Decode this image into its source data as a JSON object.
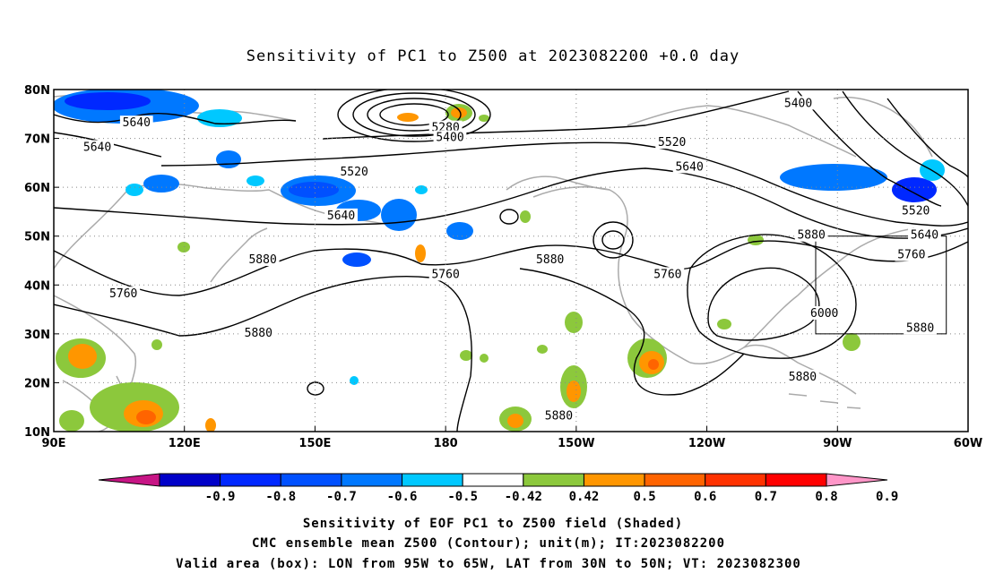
{
  "title": "Sensitivity of PC1 to Z500 at 2023082200 +0.0 day",
  "map": {
    "lon_range": [
      90,
      300
    ],
    "lat_range": [
      10,
      80
    ],
    "x_ticks": [
      {
        "lon": 90,
        "label": "90E"
      },
      {
        "lon": 120,
        "label": "120E"
      },
      {
        "lon": 150,
        "label": "150E"
      },
      {
        "lon": 180,
        "label": "180"
      },
      {
        "lon": 210,
        "label": "150W"
      },
      {
        "lon": 240,
        "label": "120W"
      },
      {
        "lon": 270,
        "label": "90W"
      },
      {
        "lon": 300,
        "label": "60W"
      }
    ],
    "y_ticks": [
      {
        "lat": 10,
        "label": "10N"
      },
      {
        "lat": 20,
        "label": "20N"
      },
      {
        "lat": 30,
        "label": "30N"
      },
      {
        "lat": 40,
        "label": "40N"
      },
      {
        "lat": 50,
        "label": "50N"
      },
      {
        "lat": 60,
        "label": "60N"
      },
      {
        "lat": 70,
        "label": "70N"
      },
      {
        "lat": 80,
        "label": "80N"
      }
    ],
    "grid": "dotted",
    "contour_labels": [
      {
        "text": "5640",
        "lon": 109,
        "lat": 73
      },
      {
        "text": "5640",
        "lon": 100,
        "lat": 68
      },
      {
        "text": "5280",
        "lon": 180,
        "lat": 72
      },
      {
        "text": "5400",
        "lon": 181,
        "lat": 70
      },
      {
        "text": "5520",
        "lon": 159,
        "lat": 63
      },
      {
        "text": "5640",
        "lon": 156,
        "lat": 54
      },
      {
        "text": "5520",
        "lon": 232,
        "lat": 69
      },
      {
        "text": "5640",
        "lon": 236,
        "lat": 64
      },
      {
        "text": "5400",
        "lon": 261,
        "lat": 77
      },
      {
        "text": "5520",
        "lon": 288,
        "lat": 55
      },
      {
        "text": "5640",
        "lon": 290,
        "lat": 50
      },
      {
        "text": "5760",
        "lon": 287,
        "lat": 46
      },
      {
        "text": "5880",
        "lon": 264,
        "lat": 50
      },
      {
        "text": "6000",
        "lon": 267,
        "lat": 34
      },
      {
        "text": "5880",
        "lon": 289,
        "lat": 31
      },
      {
        "text": "5880",
        "lon": 262,
        "lat": 21
      },
      {
        "text": "5760",
        "lon": 106,
        "lat": 38
      },
      {
        "text": "5880",
        "lon": 137,
        "lat": 30
      },
      {
        "text": "5880",
        "lon": 138,
        "lat": 45
      },
      {
        "text": "5760",
        "lon": 180,
        "lat": 42
      },
      {
        "text": "5880",
        "lon": 204,
        "lat": 45
      },
      {
        "text": "5760",
        "lon": 231,
        "lat": 42
      },
      {
        "text": "5880",
        "lon": 206,
        "lat": 13
      }
    ],
    "valid_box": {
      "lon": [
        265,
        295
      ],
      "lat": [
        30,
        50
      ]
    }
  },
  "colorbar": {
    "colors": [
      "#c71585",
      "#0000c8",
      "#0028ff",
      "#0050ff",
      "#0078ff",
      "#00c8ff",
      "#ffffff",
      "#8cc83c",
      "#ff9600",
      "#ff6400",
      "#ff3200",
      "#ff0000",
      "#ff96c8"
    ],
    "labels": [
      "-0.9",
      "-0.8",
      "-0.7",
      "-0.6",
      "-0.5",
      "-0.42",
      "0.42",
      "0.5",
      "0.6",
      "0.7",
      "0.8",
      "0.9"
    ]
  },
  "caption": [
    "Sensitivity of EOF PC1 to Z500 field (Shaded)",
    "CMC ensemble mean Z500 (Contour); unit(m); IT:2023082200",
    "Valid area (box): LON from 95W to 65W, LAT from 30N to 50N; VT: 2023082300"
  ]
}
